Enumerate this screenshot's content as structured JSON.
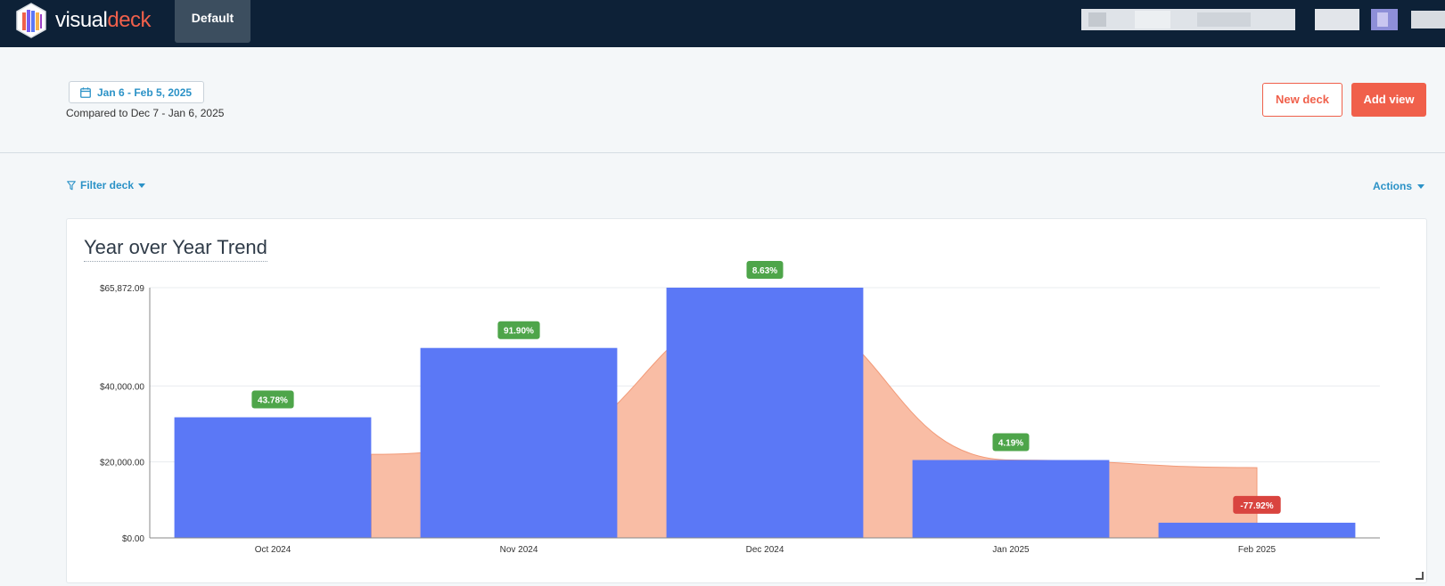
{
  "brand": {
    "part1": "visual",
    "part2": "deck"
  },
  "tabs": [
    {
      "label": "Default"
    }
  ],
  "date_range": {
    "label": "Jan 6 - Feb 5, 2025",
    "compared": "Compared to Dec 7 - Jan 6, 2025"
  },
  "buttons": {
    "new_deck": "New deck",
    "add_view": "Add view",
    "filter": "Filter deck",
    "actions": "Actions"
  },
  "card": {
    "title": "Year over Year Trend"
  },
  "colors": {
    "bar": "#5b78f6",
    "area": "#f9bda5",
    "area_stroke": "#f29a78",
    "positive": "#4ea54a",
    "negative": "#d9443f",
    "accent": "#f0604b",
    "link": "#2b92c7"
  },
  "chart_data": {
    "type": "bar",
    "categories": [
      "Oct 2024",
      "Nov 2024",
      "Dec 2024",
      "Jan 2025",
      "Feb 2025"
    ],
    "series": [
      {
        "values": [
          31750,
          50000,
          65872.09,
          20500,
          4000
        ]
      },
      {
        "values": [
          22000,
          24000,
          60600,
          20500,
          18500
        ]
      }
    ],
    "change_labels": [
      "43.78%",
      "91.90%",
      "8.63%",
      "4.19%",
      "-77.92%"
    ],
    "y_ticks": [
      "$0.00",
      "$20,000.00",
      "$40,000.00",
      "$65,872.09"
    ],
    "y_tick_values": [
      0,
      20000,
      40000,
      65872.09
    ],
    "ylim": [
      0,
      65872.09
    ],
    "grid": true
  }
}
